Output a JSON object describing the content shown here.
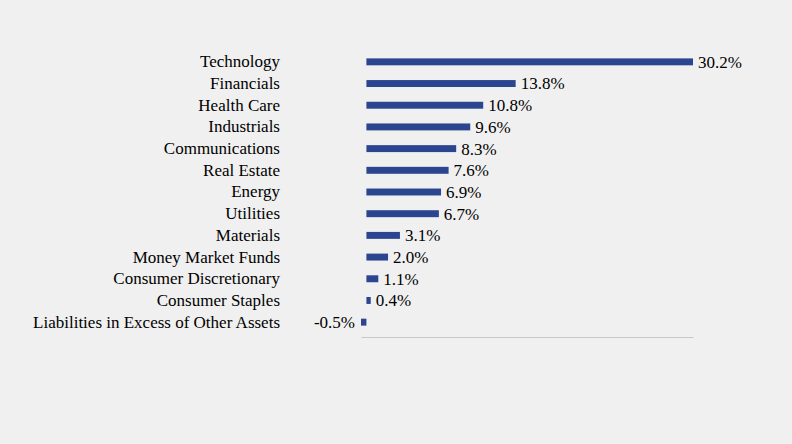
{
  "chart_data": {
    "type": "bar",
    "orientation": "horizontal",
    "categories": [
      "Technology",
      "Financials",
      "Health Care",
      "Industrials",
      "Communications",
      "Real Estate",
      "Energy",
      "Utilities",
      "Materials",
      "Money Market Funds",
      "Consumer Discretionary",
      "Consumer Staples",
      "Liabilities in Excess of Other Assets"
    ],
    "values": [
      30.2,
      13.8,
      10.8,
      9.6,
      8.3,
      7.6,
      6.9,
      6.7,
      3.1,
      2.0,
      1.1,
      0.4,
      -0.5
    ],
    "value_labels": [
      "30.2%",
      "13.8%",
      "10.8%",
      "9.6%",
      "8.3%",
      "7.6%",
      "6.9%",
      "6.7%",
      "3.1%",
      "2.0%",
      "1.1%",
      "0.4%",
      "-0.5%"
    ],
    "color": "#2b4590",
    "xlim": [
      -0.5,
      30.2
    ],
    "xticks": [],
    "data_labels": true,
    "tick_labels": false,
    "grid": false
  }
}
